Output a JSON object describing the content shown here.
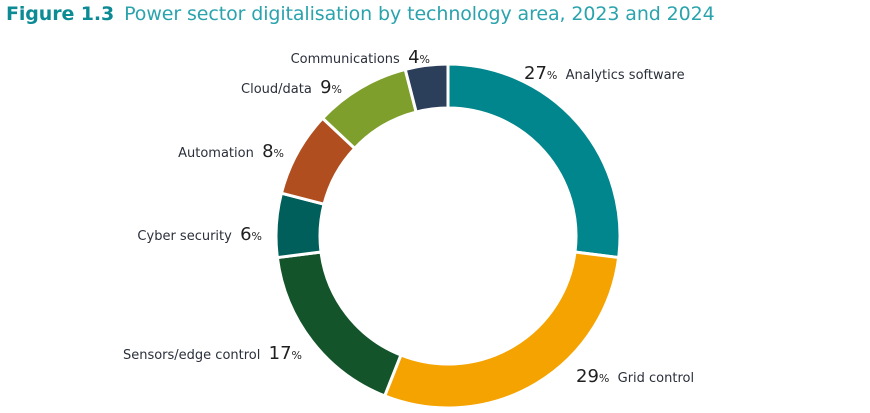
{
  "figure": {
    "number": "Figure 1.3",
    "title": "Power sector digitalisation by technology area, 2023 and 2024"
  },
  "chart_data": {
    "type": "pie",
    "variant": "donut",
    "title": "Power sector digitalisation by technology area, 2023 and 2024",
    "unit": "%",
    "start": "12 o'clock, clockwise",
    "slices": [
      {
        "label": "Analytics software",
        "value": 27,
        "color": "#00868c",
        "label_side": "right"
      },
      {
        "label": "Grid control",
        "value": 29,
        "color": "#f5a300",
        "label_side": "right"
      },
      {
        "label": "Sensors/edge control",
        "value": 17,
        "color": "#14542a",
        "label_side": "left"
      },
      {
        "label": "Cyber security",
        "value": 6,
        "color": "#005f5a",
        "label_side": "left"
      },
      {
        "label": "Automation",
        "value": 8,
        "color": "#b04e1f",
        "label_side": "left"
      },
      {
        "label": "Cloud/data",
        "value": 9,
        "color": "#7f9f2d",
        "label_side": "left"
      },
      {
        "label": "Communications",
        "value": 4,
        "color": "#2b3e5a",
        "label_side": "left"
      }
    ]
  }
}
